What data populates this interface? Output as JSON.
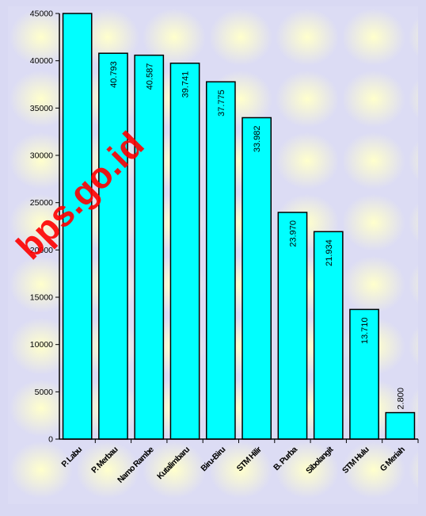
{
  "watermark": "bps.go.id",
  "chart_data": {
    "type": "bar",
    "title": "",
    "xlabel": "",
    "ylabel": "",
    "ylim": [
      0,
      45000
    ],
    "yticks": [
      0,
      5000,
      10000,
      15000,
      20000,
      25000,
      30000,
      35000,
      40000,
      45000
    ],
    "grid": false,
    "legend": "none",
    "categories": [
      "P. Labu",
      "P. Merbau",
      "Namo Rambe",
      "Kutalimbaru",
      "Biru-Biru",
      "STM Hilir",
      "B. Purba",
      "Sibolangit",
      "STM Hulu",
      "G Meriah"
    ],
    "values": [
      45000,
      40793,
      40587,
      39741,
      37775,
      33982,
      23970,
      21934,
      13710,
      2800
    ],
    "data_labels": [
      "",
      "40.793",
      "40.587",
      "39.741",
      "37.775",
      "33.982",
      "23.970",
      "21.934",
      "13.710",
      "2.800"
    ],
    "colors": {
      "bar": "#00ffff",
      "outline": "#000000",
      "plot_bg": "#f2f2c8",
      "outer_bg": "#d9d9f3",
      "watermark": "#ff0000"
    }
  }
}
